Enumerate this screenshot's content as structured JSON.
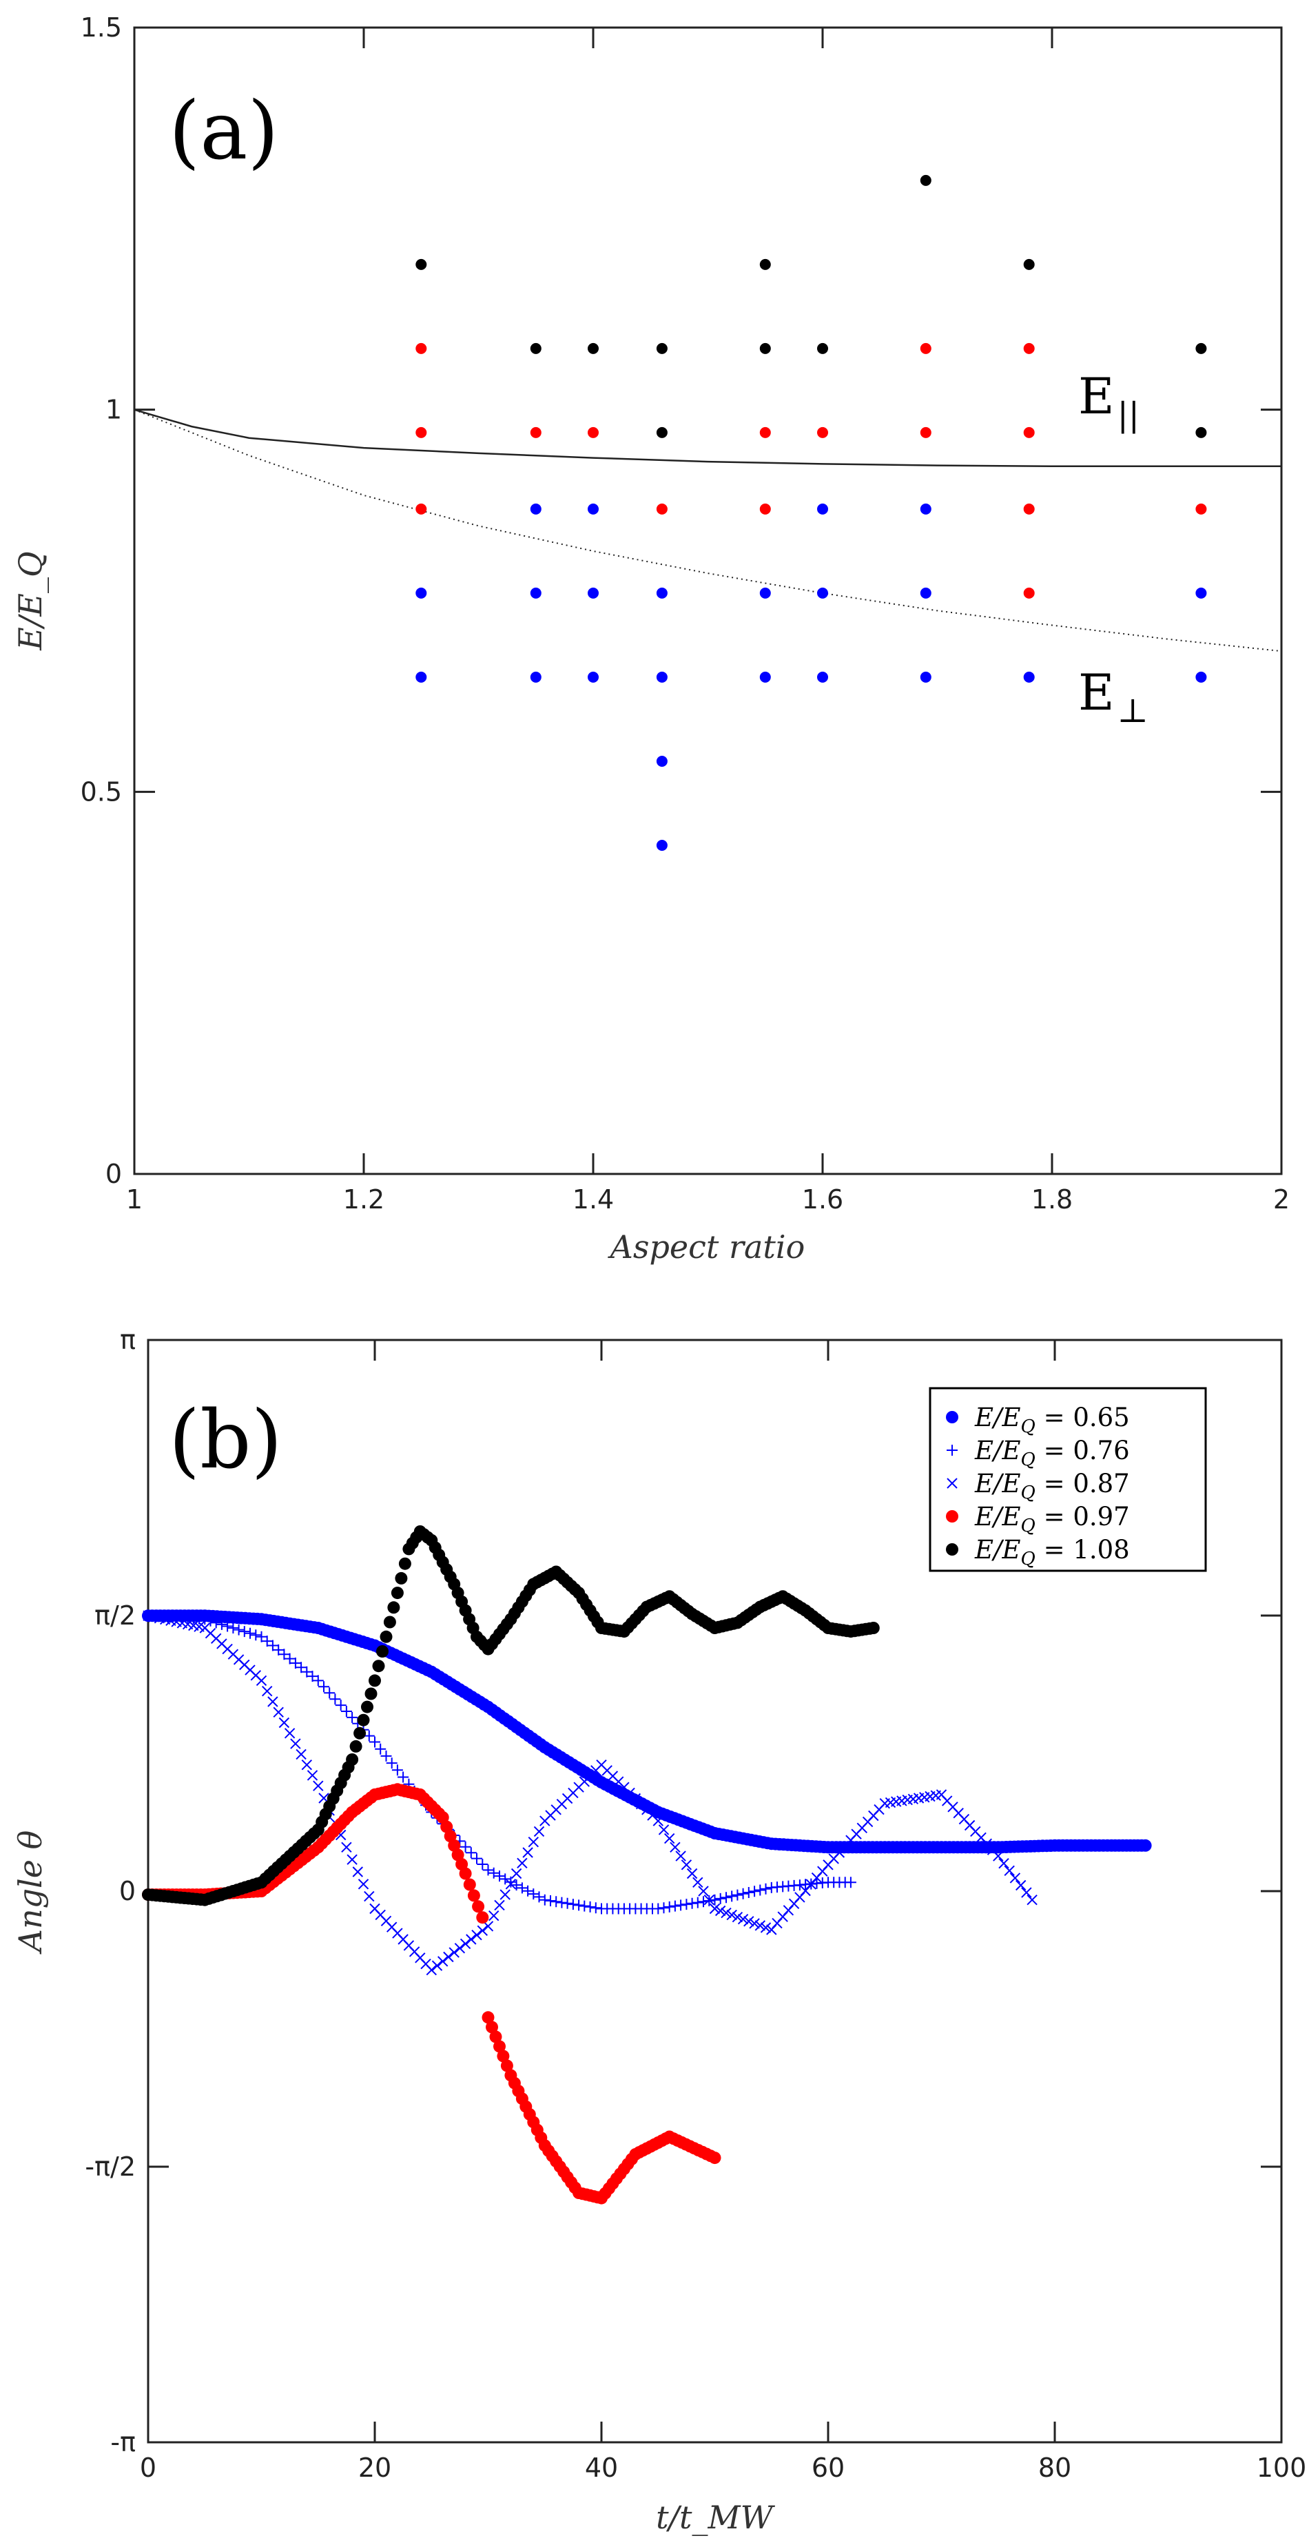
{
  "chart_data": [
    {
      "id": "a",
      "type": "scatter",
      "panel_label": "(a)",
      "xlabel": "Aspect ratio",
      "ylabel": "E/E_Q",
      "xlim": [
        1,
        2
      ],
      "ylim": [
        0,
        1.5
      ],
      "xticks": [
        1,
        1.2,
        1.4,
        1.6,
        1.8,
        2
      ],
      "xtick_labels": [
        "1",
        "1.2",
        "1.4",
        "1.6",
        "1.8",
        "2"
      ],
      "yticks": [
        0,
        0.5,
        1,
        1.5
      ],
      "ytick_labels": [
        "0",
        "0.5",
        "1",
        "1.5"
      ],
      "colors": {
        "blue": "#0000ff",
        "red": "#ff0000",
        "black": "#000000"
      },
      "points": {
        "blue": [
          [
            1.25,
            0.65
          ],
          [
            1.25,
            0.76
          ],
          [
            1.35,
            0.65
          ],
          [
            1.35,
            0.76
          ],
          [
            1.35,
            0.87
          ],
          [
            1.4,
            0.65
          ],
          [
            1.4,
            0.76
          ],
          [
            1.4,
            0.87
          ],
          [
            1.46,
            0.43
          ],
          [
            1.46,
            0.54
          ],
          [
            1.46,
            0.65
          ],
          [
            1.46,
            0.76
          ],
          [
            1.55,
            0.65
          ],
          [
            1.55,
            0.76
          ],
          [
            1.6,
            0.65
          ],
          [
            1.6,
            0.76
          ],
          [
            1.6,
            0.87
          ],
          [
            1.69,
            0.65
          ],
          [
            1.69,
            0.76
          ],
          [
            1.69,
            0.87
          ],
          [
            1.78,
            0.65
          ],
          [
            1.93,
            0.65
          ],
          [
            1.93,
            0.76
          ]
        ],
        "red": [
          [
            1.25,
            0.87
          ],
          [
            1.25,
            0.97
          ],
          [
            1.25,
            1.08
          ],
          [
            1.35,
            0.97
          ],
          [
            1.4,
            0.97
          ],
          [
            1.46,
            0.87
          ],
          [
            1.55,
            0.87
          ],
          [
            1.55,
            0.97
          ],
          [
            1.6,
            0.97
          ],
          [
            1.69,
            0.97
          ],
          [
            1.69,
            1.08
          ],
          [
            1.78,
            0.76
          ],
          [
            1.78,
            0.87
          ],
          [
            1.78,
            0.97
          ],
          [
            1.78,
            1.08
          ],
          [
            1.93,
            0.87
          ]
        ],
        "black": [
          [
            1.25,
            1.19
          ],
          [
            1.35,
            1.08
          ],
          [
            1.4,
            1.08
          ],
          [
            1.46,
            0.97
          ],
          [
            1.46,
            1.08
          ],
          [
            1.55,
            1.08
          ],
          [
            1.55,
            1.19
          ],
          [
            1.6,
            1.08
          ],
          [
            1.69,
            1.3
          ],
          [
            1.78,
            1.19
          ],
          [
            1.93,
            0.97
          ],
          [
            1.93,
            1.08
          ]
        ]
      },
      "curves": [
        {
          "name": "E_parallel",
          "label_main": "E",
          "label_sub": "||",
          "style": "solid",
          "x": [
            1,
            1.05,
            1.1,
            1.2,
            1.3,
            1.4,
            1.5,
            1.6,
            1.7,
            1.8,
            1.9,
            2
          ],
          "y": [
            1,
            0.978,
            0.963,
            0.95,
            0.943,
            0.937,
            0.932,
            0.929,
            0.927,
            0.926,
            0.926,
            0.926
          ]
        },
        {
          "name": "E_perp",
          "label_main": "E",
          "label_sub": "⊥",
          "style": "dotted",
          "x": [
            1,
            1.1,
            1.2,
            1.3,
            1.4,
            1.5,
            1.6,
            1.7,
            1.8,
            1.9,
            2
          ],
          "y": [
            1,
            0.94,
            0.888,
            0.848,
            0.815,
            0.786,
            0.76,
            0.737,
            0.718,
            0.7,
            0.684
          ]
        }
      ]
    },
    {
      "id": "b",
      "type": "scatter",
      "panel_label": "(b)",
      "xlabel": "t/t_MW",
      "ylabel": "Angle θ",
      "xlim": [
        0,
        100
      ],
      "ylim": [
        -3.14159,
        3.14159
      ],
      "xticks": [
        0,
        20,
        40,
        60,
        80,
        100
      ],
      "xtick_labels": [
        "0",
        "20",
        "40",
        "60",
        "80",
        "100"
      ],
      "yticks": [
        -3.14159,
        -1.5708,
        0,
        1.5708,
        3.14159
      ],
      "ytick_labels": [
        "-π",
        "-π/2",
        "0",
        "π/2",
        "π"
      ],
      "legend_position": "top-right",
      "series": [
        {
          "name": "E/E_Q = 0.65",
          "legend_prefix": "E/E",
          "legend_sub": "Q",
          "legend_value": " = 0.65",
          "color": "#0000ff",
          "marker": "circle",
          "x": [
            0,
            5,
            10,
            15,
            20,
            25,
            30,
            35,
            40,
            45,
            50,
            55,
            60,
            65,
            70,
            75,
            80,
            85,
            88
          ],
          "y": [
            1.57,
            1.57,
            1.55,
            1.5,
            1.4,
            1.25,
            1.05,
            0.82,
            0.62,
            0.45,
            0.33,
            0.27,
            0.25,
            0.25,
            0.25,
            0.25,
            0.26,
            0.26,
            0.26
          ]
        },
        {
          "name": "E/E_Q = 0.76",
          "legend_prefix": "E/E",
          "legend_sub": "Q",
          "legend_value": " = 0.76",
          "color": "#0000ff",
          "marker": "plus",
          "x": [
            0,
            5,
            10,
            15,
            20,
            25,
            30,
            35,
            40,
            45,
            50,
            55,
            60,
            62
          ],
          "y": [
            1.57,
            1.55,
            1.45,
            1.2,
            0.85,
            0.45,
            0.12,
            -0.05,
            -0.1,
            -0.1,
            -0.05,
            0.02,
            0.05,
            0.05
          ]
        },
        {
          "name": "E/E_Q = 0.87",
          "legend_prefix": "E/E",
          "legend_sub": "Q",
          "legend_value": " = 0.87",
          "color": "#0000ff",
          "marker": "cross",
          "x": [
            0,
            5,
            10,
            15,
            20,
            25,
            30,
            35,
            40,
            45,
            50,
            55,
            60,
            65,
            70,
            75,
            78
          ],
          "y": [
            1.57,
            1.5,
            1.2,
            0.6,
            -0.1,
            -0.45,
            -0.2,
            0.4,
            0.72,
            0.4,
            -0.1,
            -0.22,
            0.15,
            0.5,
            0.55,
            0.2,
            -0.05
          ]
        },
        {
          "name": "E/E_Q = 0.97",
          "legend_prefix": "E/E",
          "legend_sub": "Q",
          "legend_value": " = 0.97",
          "color": "#ff0000",
          "marker": "circle",
          "x": [
            0,
            5,
            10,
            15,
            18,
            20,
            22,
            24,
            26,
            28,
            29.5,
            30,
            32,
            35,
            38,
            40,
            43,
            46,
            50
          ],
          "y": [
            -0.02,
            -0.02,
            0.0,
            0.25,
            0.45,
            0.55,
            0.58,
            0.55,
            0.42,
            0.1,
            -0.15,
            -0.72,
            -1.05,
            -1.45,
            -1.72,
            -1.75,
            -1.5,
            -1.4,
            -1.52
          ]
        },
        {
          "name": "E/E_Q = 1.08",
          "legend_prefix": "E/E",
          "legend_sub": "Q",
          "legend_value": " = 1.08",
          "color": "#000000",
          "marker": "circle",
          "x": [
            0,
            5,
            10,
            15,
            18,
            20,
            22,
            23,
            24,
            25,
            27,
            29,
            30,
            32,
            34,
            36,
            38,
            40,
            42,
            44,
            46,
            48,
            50,
            52,
            54,
            56,
            58,
            60,
            62,
            64
          ],
          "y": [
            -0.02,
            -0.05,
            0.05,
            0.35,
            0.75,
            1.2,
            1.7,
            1.95,
            2.05,
            2.0,
            1.75,
            1.45,
            1.38,
            1.55,
            1.75,
            1.82,
            1.7,
            1.5,
            1.48,
            1.62,
            1.68,
            1.58,
            1.5,
            1.53,
            1.62,
            1.68,
            1.6,
            1.5,
            1.48,
            1.5
          ]
        }
      ]
    }
  ]
}
